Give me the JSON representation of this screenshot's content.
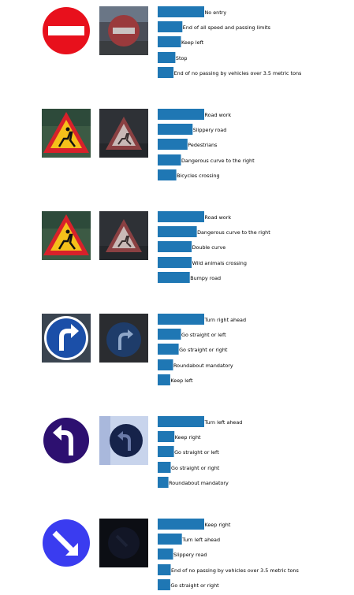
{
  "colors": {
    "bar": "#1f77b4",
    "background": "#ffffff"
  },
  "chart_data": [
    {
      "type": "bar",
      "orientation": "horizontal",
      "sign_icon": "no-entry-sign",
      "photo_icon": "no-entry-photo",
      "categories": [
        "No entry",
        "End of all speed and passing limits",
        "Keep left",
        "Stop",
        "End of no passing by vehicles over 3.5 metric tons"
      ],
      "values": [
        1.0,
        0.53,
        0.5,
        0.38,
        0.34
      ],
      "xlim": [
        0,
        1
      ]
    },
    {
      "type": "bar",
      "orientation": "horizontal",
      "sign_icon": "road-work-sign",
      "photo_icon": "road-work-photo",
      "categories": [
        "Road work",
        "Slippery road",
        "Pedestrians",
        "Dangerous curve to the right",
        "Bicycles crossing"
      ],
      "values": [
        1.0,
        0.75,
        0.64,
        0.5,
        0.4
      ],
      "xlim": [
        0,
        1
      ]
    },
    {
      "type": "bar",
      "orientation": "horizontal",
      "sign_icon": "road-work-sign",
      "photo_icon": "road-work-photo",
      "categories": [
        "Road work",
        "Dangerous curve to the right",
        "Double curve",
        "Wild animals crossing",
        "Bumpy road"
      ],
      "values": [
        1.0,
        0.84,
        0.73,
        0.73,
        0.69
      ],
      "xlim": [
        0,
        1
      ]
    },
    {
      "type": "bar",
      "orientation": "horizontal",
      "sign_icon": "turn-right-ahead-sign",
      "photo_icon": "turn-right-ahead-photo",
      "categories": [
        "Turn right ahead",
        "Go straight or left",
        "Go straight or right",
        "Roundabout mandatory",
        "Keep left"
      ],
      "values": [
        1.0,
        0.5,
        0.45,
        0.33,
        0.27
      ],
      "xlim": [
        0,
        1
      ]
    },
    {
      "type": "bar",
      "orientation": "horizontal",
      "sign_icon": "turn-left-ahead-sign",
      "photo_icon": "turn-left-ahead-photo",
      "categories": [
        "Turn left ahead",
        "Keep right",
        "Go straight or left",
        "Go straight or right",
        "Roundabout mandatory"
      ],
      "values": [
        1.0,
        0.36,
        0.35,
        0.28,
        0.23
      ],
      "xlim": [
        0,
        1
      ]
    },
    {
      "type": "bar",
      "orientation": "horizontal",
      "sign_icon": "keep-right-sign",
      "photo_icon": "keep-right-photo",
      "categories": [
        "Keep right",
        "Turn left ahead",
        "Slippery road",
        "End of no passing by vehicles over 3.5 metric tons",
        "Go straight or right"
      ],
      "values": [
        1.0,
        0.52,
        0.33,
        0.28,
        0.27
      ],
      "xlim": [
        0,
        1
      ]
    }
  ]
}
